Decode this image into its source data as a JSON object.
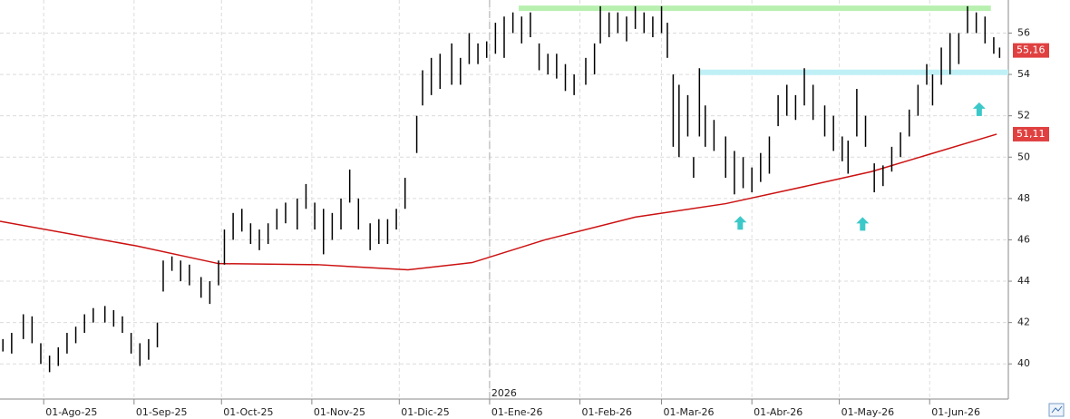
{
  "chart_data": {
    "type": "range-bar",
    "xlim": [
      -15,
      331
    ],
    "ylim": [
      38.3,
      57.6
    ],
    "yticks": [
      40,
      42,
      44,
      46,
      48,
      50,
      52,
      54,
      56
    ],
    "xticks": [
      {
        "value": 0,
        "label": "01-Ago-25"
      },
      {
        "value": 31,
        "label": "01-Sep-25"
      },
      {
        "value": 61,
        "label": "01-Oct-25"
      },
      {
        "value": 92,
        "label": "01-Nov-25"
      },
      {
        "value": 122,
        "label": "01-Dic-25"
      },
      {
        "value": 153,
        "label": "01-Ene-26"
      },
      {
        "value": 184,
        "label": "01-Feb-26"
      },
      {
        "value": 212,
        "label": "01-Mar-26"
      },
      {
        "value": 243,
        "label": "01-Abr-26"
      },
      {
        "value": 273,
        "label": "01-May-26"
      },
      {
        "value": 304,
        "label": "01-Jun-26"
      }
    ],
    "grid": true,
    "year_marker": {
      "x": 153,
      "label": "2026"
    },
    "bars": {
      "color": "#000000",
      "x": [
        -14,
        -11,
        -7,
        -4,
        -1,
        2,
        5,
        8,
        11,
        14,
        17,
        21,
        24,
        27,
        30,
        33,
        36,
        39,
        41,
        44,
        47,
        50,
        54,
        57,
        60,
        62,
        65,
        68,
        71,
        74,
        77,
        80,
        83,
        87,
        90,
        93,
        96,
        99,
        102,
        105,
        108,
        112,
        115,
        118,
        121,
        124,
        128,
        130,
        133,
        136,
        140,
        143,
        146,
        149,
        152,
        155,
        158,
        161,
        164,
        167,
        170,
        173,
        176,
        179,
        182,
        186,
        189,
        191,
        194,
        197,
        200,
        203,
        206,
        209,
        212,
        214,
        216,
        218,
        221,
        223,
        225,
        227,
        230,
        234,
        237,
        240,
        243,
        246,
        249,
        252,
        255,
        258,
        261,
        264,
        268,
        271,
        274,
        276,
        279,
        282,
        285,
        288,
        291,
        294,
        297,
        300,
        303,
        305,
        308,
        311,
        314,
        317,
        320,
        323,
        326,
        328
      ],
      "high": [
        41.2,
        41.5,
        42.4,
        42.3,
        41.0,
        40.4,
        40.8,
        41.5,
        41.8,
        42.4,
        42.7,
        42.8,
        42.6,
        42.3,
        41.5,
        41.0,
        41.2,
        42.0,
        45.0,
        45.2,
        45.0,
        44.8,
        44.2,
        44.0,
        45.0,
        46.5,
        47.3,
        47.5,
        46.8,
        46.5,
        46.8,
        47.5,
        47.8,
        48.0,
        48.7,
        47.8,
        47.5,
        47.3,
        48.0,
        49.4,
        48.0,
        46.8,
        47.0,
        47.0,
        47.5,
        49.0,
        52.0,
        54.2,
        54.8,
        55.0,
        55.5,
        54.8,
        56.0,
        55.5,
        55.6,
        56.5,
        56.8,
        57.0,
        56.8,
        57.0,
        55.5,
        55.0,
        55.0,
        54.5,
        54.0,
        54.8,
        55.5,
        57.3,
        57.0,
        57.0,
        56.8,
        57.3,
        57.0,
        56.8,
        57.3,
        56.5,
        54.0,
        53.5,
        53.0,
        50.0,
        54.3,
        52.5,
        51.8,
        51.0,
        50.3,
        50.0,
        49.5,
        50.2,
        51.0,
        53.0,
        53.5,
        53.0,
        54.3,
        53.5,
        52.5,
        52.0,
        51.0,
        50.8,
        53.3,
        52.0,
        49.7,
        49.6,
        50.5,
        51.2,
        52.3,
        53.5,
        54.5,
        54.0,
        55.3,
        56.0,
        56.0,
        57.3,
        57.0,
        56.8,
        55.8,
        55.3
      ],
      "low": [
        40.6,
        40.5,
        41.2,
        41.0,
        40.0,
        39.6,
        39.9,
        40.5,
        41.0,
        41.5,
        42.0,
        42.0,
        41.8,
        41.5,
        40.5,
        39.9,
        40.2,
        40.8,
        43.5,
        44.5,
        44.0,
        43.8,
        43.2,
        42.9,
        43.8,
        44.8,
        46.0,
        46.4,
        45.8,
        45.5,
        45.8,
        46.5,
        46.8,
        46.5,
        47.5,
        46.5,
        45.3,
        46.0,
        46.5,
        47.8,
        46.5,
        45.5,
        45.8,
        45.8,
        46.5,
        47.5,
        50.2,
        52.5,
        53.0,
        53.3,
        53.5,
        53.5,
        54.5,
        54.5,
        54.8,
        55.0,
        54.8,
        56.0,
        55.5,
        55.8,
        54.2,
        54.0,
        53.8,
        53.2,
        53.0,
        53.5,
        54.0,
        55.5,
        55.8,
        56.0,
        55.6,
        56.2,
        56.0,
        55.8,
        56.0,
        54.8,
        50.5,
        50.0,
        51.0,
        49.0,
        51.0,
        50.5,
        50.3,
        49.0,
        48.2,
        48.5,
        48.3,
        48.8,
        49.2,
        51.5,
        52.0,
        51.8,
        52.5,
        51.8,
        51.0,
        50.3,
        49.8,
        49.2,
        51.0,
        50.5,
        48.3,
        48.6,
        49.3,
        50.0,
        51.0,
        52.0,
        53.5,
        52.5,
        53.5,
        54.0,
        54.5,
        56.0,
        56.0,
        55.5,
        55.0,
        54.8
      ]
    },
    "moving_average": {
      "color": "#cc1111",
      "x": [
        -15,
        32,
        60,
        94,
        125,
        147,
        172,
        203,
        234,
        265,
        284,
        303,
        327
      ],
      "values": [
        46.9,
        45.7,
        44.85,
        44.8,
        44.55,
        44.9,
        46.0,
        47.1,
        47.75,
        48.7,
        49.3,
        50.1,
        51.11
      ]
    },
    "hlines": [
      {
        "value": 57.2,
        "x": [
          163,
          325
        ],
        "color": "#b8f0b0"
      },
      {
        "value": 54.1,
        "x": [
          225,
          331
        ],
        "color": "#bff0f6"
      }
    ],
    "arrows": {
      "color": "#3cc8c8",
      "x": [
        239,
        281,
        321
      ],
      "y": [
        46.8,
        46.75,
        52.3
      ]
    },
    "price_tags": [
      {
        "value": 55.16,
        "label": "55,16",
        "color": "#e04040"
      },
      {
        "value": 51.11,
        "label": "51,11",
        "color": "#e04040"
      }
    ]
  }
}
